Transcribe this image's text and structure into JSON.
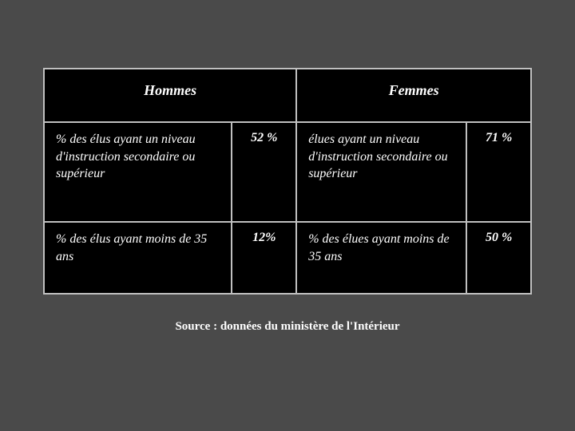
{
  "table": {
    "background_color": "#000000",
    "border_color": "#c0c0c0",
    "text_color": "#ffffff",
    "columns": [
      "label_hommes",
      "value_hommes",
      "label_femmes",
      "value_femmes"
    ],
    "header": {
      "hommes": "Hommes",
      "femmes": "Femmes"
    },
    "rows": [
      {
        "label_hommes": "% des élus ayant un niveau d'instruction secondaire ou supérieur",
        "value_hommes": "52 %",
        "label_femmes": "élues ayant un niveau d'instruction secondaire ou supérieur",
        "value_femmes": "71 %"
      },
      {
        "label_hommes": "% des élus ayant moins de 35 ans",
        "value_hommes": "12%",
        "label_femmes": "% des élues ayant moins de 35 ans",
        "value_femmes": "50 %"
      }
    ]
  },
  "source": "Source : données du ministère de l'Intérieur",
  "page_background": "#4a4a4a"
}
